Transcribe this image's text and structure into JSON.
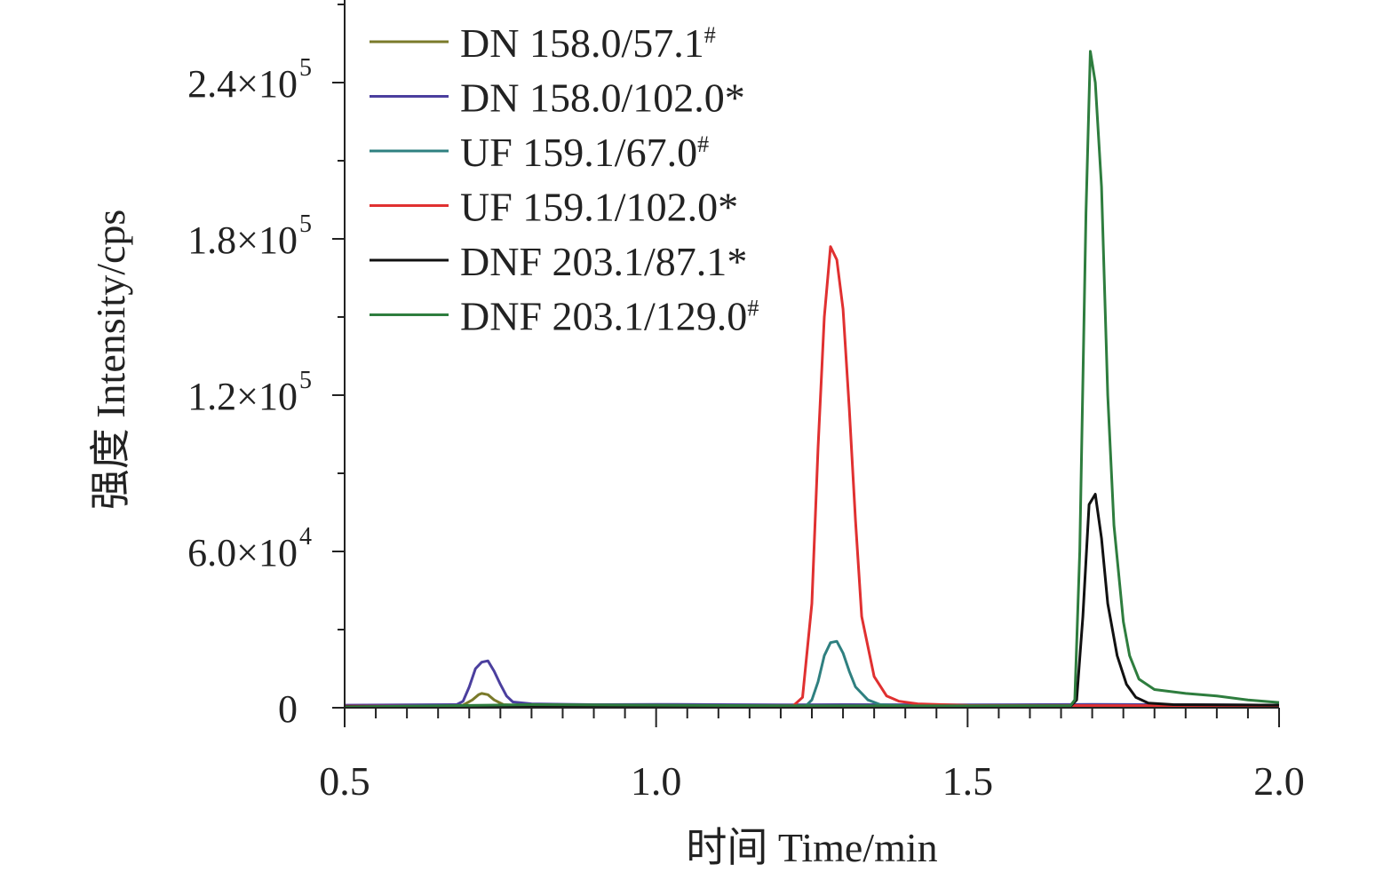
{
  "chart_data": {
    "type": "line",
    "xlabel": "时间 Time/min",
    "ylabel": "强度 Intensity/cps",
    "xlim": [
      0.5,
      2.0
    ],
    "ylim": [
      0,
      270000
    ],
    "x_ticks": [
      {
        "value": 0.5,
        "label": "0.5"
      },
      {
        "value": 1.0,
        "label": "1.0"
      },
      {
        "value": 1.5,
        "label": "1.5"
      },
      {
        "value": 2.0,
        "label": "2.0"
      }
    ],
    "x_minor_step": 0.05,
    "y_ticks": [
      {
        "value": 0,
        "base": "0",
        "exp": ""
      },
      {
        "value": 60000,
        "base": "6.0×10",
        "exp": "4"
      },
      {
        "value": 120000,
        "base": "1.2×10",
        "exp": "5"
      },
      {
        "value": 180000,
        "base": "1.8×10",
        "exp": "5"
      },
      {
        "value": 240000,
        "base": "2.4×10",
        "exp": "5"
      }
    ],
    "y_minor_step": 30000,
    "legend_position": "top-left",
    "series": [
      {
        "name": "DN 158.0/57.1",
        "mark": "#",
        "color": "#7a7a2a",
        "points": [
          [
            0.5,
            800
          ],
          [
            0.65,
            900
          ],
          [
            0.69,
            1000
          ],
          [
            0.705,
            3000
          ],
          [
            0.715,
            5000
          ],
          [
            0.72,
            5500
          ],
          [
            0.73,
            5000
          ],
          [
            0.74,
            3000
          ],
          [
            0.755,
            1200
          ],
          [
            0.78,
            900
          ],
          [
            0.9,
            900
          ],
          [
            1.2,
            800
          ],
          [
            1.6,
            800
          ],
          [
            2.0,
            800
          ]
        ]
      },
      {
        "name": "DN 158.0/102.0",
        "mark": "*",
        "color": "#4b3f9e",
        "points": [
          [
            0.5,
            1000
          ],
          [
            0.6,
            1100
          ],
          [
            0.68,
            1200
          ],
          [
            0.69,
            2500
          ],
          [
            0.7,
            8000
          ],
          [
            0.71,
            15000
          ],
          [
            0.72,
            17500
          ],
          [
            0.73,
            18000
          ],
          [
            0.74,
            14000
          ],
          [
            0.75,
            9000
          ],
          [
            0.76,
            4500
          ],
          [
            0.77,
            2200
          ],
          [
            0.8,
            1500
          ],
          [
            0.9,
            1200
          ],
          [
            1.0,
            1300
          ],
          [
            1.1,
            1200
          ],
          [
            1.2,
            1100
          ],
          [
            1.3,
            1200
          ],
          [
            1.5,
            1100
          ],
          [
            1.7,
            1300
          ],
          [
            1.8,
            1200
          ],
          [
            1.9,
            1100
          ],
          [
            2.0,
            1000
          ]
        ]
      },
      {
        "name": "UF 159.1/67.0",
        "mark": "#",
        "color": "#2f8080",
        "points": [
          [
            0.5,
            500
          ],
          [
            1.0,
            500
          ],
          [
            1.24,
            600
          ],
          [
            1.25,
            3000
          ],
          [
            1.26,
            10000
          ],
          [
            1.27,
            20000
          ],
          [
            1.28,
            25000
          ],
          [
            1.29,
            25500
          ],
          [
            1.3,
            21000
          ],
          [
            1.31,
            14000
          ],
          [
            1.32,
            8000
          ],
          [
            1.34,
            3000
          ],
          [
            1.36,
            1200
          ],
          [
            1.4,
            700
          ],
          [
            1.6,
            600
          ],
          [
            2.0,
            500
          ]
        ]
      },
      {
        "name": "UF 159.1/102.0",
        "mark": "*",
        "color": "#e03030",
        "points": [
          [
            0.5,
            600
          ],
          [
            1.0,
            600
          ],
          [
            1.22,
            700
          ],
          [
            1.235,
            4000
          ],
          [
            1.25,
            40000
          ],
          [
            1.26,
            100000
          ],
          [
            1.27,
            150000
          ],
          [
            1.28,
            177000
          ],
          [
            1.29,
            172000
          ],
          [
            1.3,
            153000
          ],
          [
            1.31,
            115000
          ],
          [
            1.32,
            72000
          ],
          [
            1.33,
            35000
          ],
          [
            1.35,
            12000
          ],
          [
            1.37,
            4500
          ],
          [
            1.39,
            2500
          ],
          [
            1.42,
            1500
          ],
          [
            1.5,
            900
          ],
          [
            2.0,
            700
          ]
        ]
      },
      {
        "name": "DNF 203.1/87.1",
        "mark": "*",
        "color": "#111111",
        "points": [
          [
            0.5,
            400
          ],
          [
            0.9,
            400
          ],
          [
            1.5,
            400
          ],
          [
            1.665,
            500
          ],
          [
            1.675,
            3000
          ],
          [
            1.685,
            35000
          ],
          [
            1.695,
            78000
          ],
          [
            1.705,
            82000
          ],
          [
            1.715,
            65000
          ],
          [
            1.725,
            40000
          ],
          [
            1.74,
            20000
          ],
          [
            1.755,
            9000
          ],
          [
            1.77,
            4000
          ],
          [
            1.79,
            1800
          ],
          [
            1.83,
            1200
          ],
          [
            2.0,
            1000
          ]
        ]
      },
      {
        "name": "DNF 203.1/129.0",
        "mark": "#",
        "color": "#2e7d3e",
        "points": [
          [
            0.5,
            300
          ],
          [
            0.8,
            1200
          ],
          [
            1.0,
            1000
          ],
          [
            1.2,
            800
          ],
          [
            1.5,
            700
          ],
          [
            1.6,
            800
          ],
          [
            1.665,
            800
          ],
          [
            1.672,
            3000
          ],
          [
            1.68,
            60000
          ],
          [
            1.69,
            190000
          ],
          [
            1.697,
            252000
          ],
          [
            1.705,
            240000
          ],
          [
            1.715,
            200000
          ],
          [
            1.725,
            120000
          ],
          [
            1.735,
            70000
          ],
          [
            1.75,
            33000
          ],
          [
            1.76,
            20000
          ],
          [
            1.775,
            11000
          ],
          [
            1.8,
            7000
          ],
          [
            1.85,
            5500
          ],
          [
            1.9,
            4500
          ],
          [
            1.95,
            3000
          ],
          [
            2.0,
            2000
          ]
        ]
      }
    ]
  }
}
